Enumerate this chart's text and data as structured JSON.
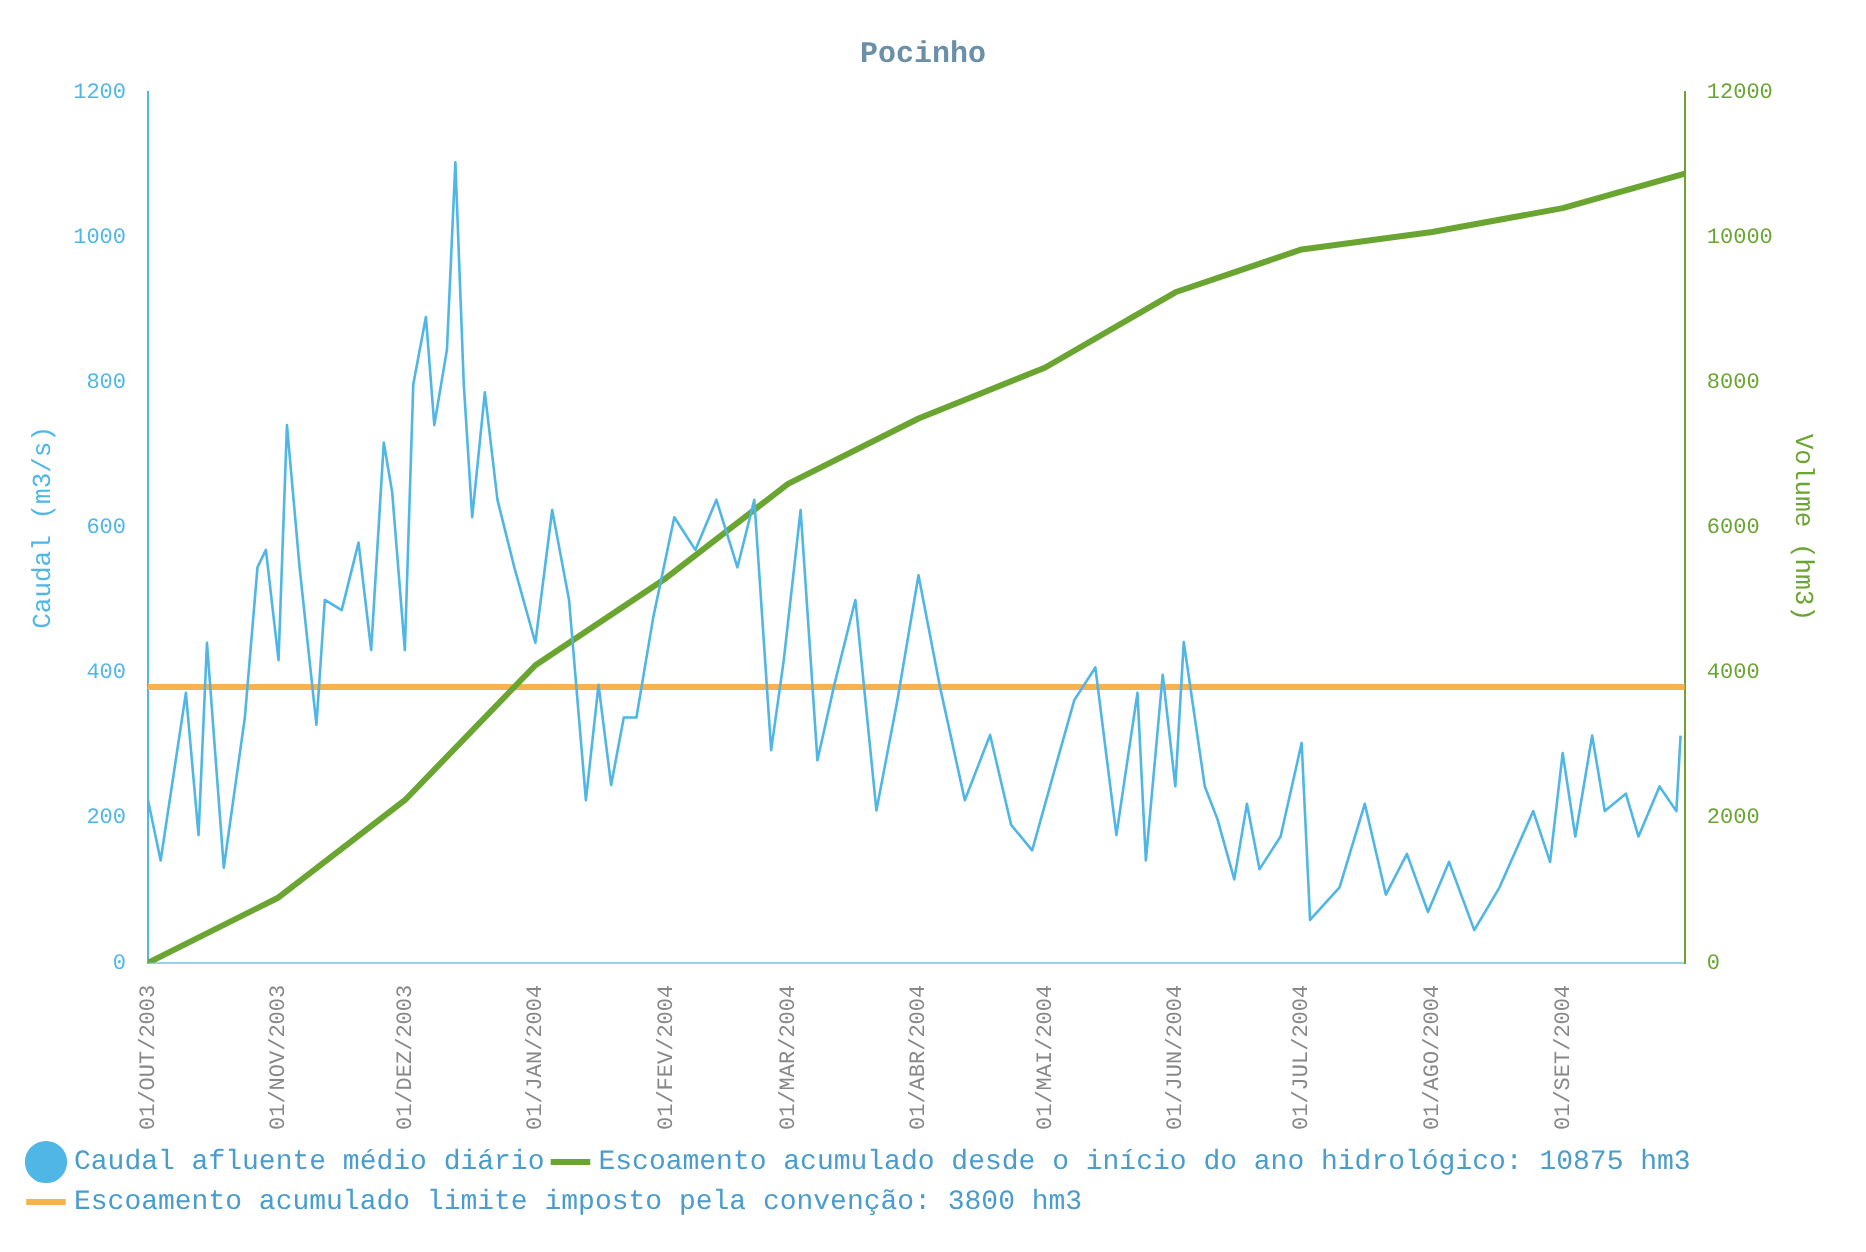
{
  "chart_data": {
    "type": "line",
    "title": "Pocinho",
    "ylabel": "Caudal (m3/s)",
    "y2label": "Volume (hm3)",
    "xlim": [
      "2003-10-01",
      "2004-09-30"
    ],
    "xticks": [
      {
        "value": "2003-10-01",
        "label": "01/OUT/2003"
      },
      {
        "value": "2003-11-01",
        "label": "01/NOV/2003"
      },
      {
        "value": "2003-12-01",
        "label": "01/DEZ/2003"
      },
      {
        "value": "2004-01-01",
        "label": "01/JAN/2004"
      },
      {
        "value": "2004-02-01",
        "label": "01/FEV/2004"
      },
      {
        "value": "2004-03-01",
        "label": "01/MAR/2004"
      },
      {
        "value": "2004-04-01",
        "label": "01/ABR/2004"
      },
      {
        "value": "2004-05-01",
        "label": "01/MAI/2004"
      },
      {
        "value": "2004-06-01",
        "label": "01/JUN/2004"
      },
      {
        "value": "2004-07-01",
        "label": "01/JUL/2004"
      },
      {
        "value": "2004-08-01",
        "label": "01/AGO/2004"
      },
      {
        "value": "2004-09-01",
        "label": "01/SET/2004"
      }
    ],
    "ylim": [
      0,
      1200
    ],
    "yticks": [
      0,
      200,
      400,
      600,
      800,
      1000,
      1200
    ],
    "y2lim": [
      0,
      12000
    ],
    "y2ticks": [
      0,
      2000,
      4000,
      6000,
      8000,
      10000,
      12000
    ],
    "grid": false,
    "legend": "bottom",
    "series": [
      {
        "name": "Caudal afluente médio diário",
        "color": "#4fb6e6",
        "x": [
          "2003-10-01",
          "2003-10-04",
          "2003-10-10",
          "2003-10-13",
          "2003-10-15",
          "2003-10-19",
          "2003-10-24",
          "2003-10-27",
          "2003-10-29",
          "2003-11-01",
          "2003-11-03",
          "2003-11-06",
          "2003-11-10",
          "2003-11-12",
          "2003-11-16",
          "2003-11-20",
          "2003-11-23",
          "2003-11-26",
          "2003-11-28",
          "2003-12-01",
          "2003-12-03",
          "2003-12-06",
          "2003-12-08",
          "2003-12-11",
          "2003-12-13",
          "2003-12-15",
          "2003-12-17",
          "2003-12-20",
          "2003-12-23",
          "2003-12-27",
          "2004-01-01",
          "2004-01-05",
          "2004-01-09",
          "2004-01-13",
          "2004-01-16",
          "2004-01-19",
          "2004-01-22",
          "2004-01-25",
          "2004-01-29",
          "2004-02-03",
          "2004-02-08",
          "2004-02-13",
          "2004-02-18",
          "2004-02-22",
          "2004-02-26",
          "2004-02-29",
          "2004-03-04",
          "2004-03-08",
          "2004-03-12",
          "2004-03-17",
          "2004-03-22",
          "2004-03-27",
          "2004-04-01",
          "2004-04-06",
          "2004-04-12",
          "2004-04-18",
          "2004-04-23",
          "2004-04-28",
          "2004-05-03",
          "2004-05-08",
          "2004-05-13",
          "2004-05-18",
          "2004-05-23",
          "2004-05-25",
          "2004-05-29",
          "2004-06-01",
          "2004-06-03",
          "2004-06-08",
          "2004-06-11",
          "2004-06-15",
          "2004-06-18",
          "2004-06-21",
          "2004-06-26",
          "2004-07-01",
          "2004-07-03",
          "2004-07-10",
          "2004-07-16",
          "2004-07-21",
          "2004-07-26",
          "2004-07-31",
          "2004-08-05",
          "2004-08-11",
          "2004-08-17",
          "2004-08-25",
          "2004-08-29",
          "2004-09-01",
          "2004-09-04",
          "2004-09-08",
          "2004-09-11",
          "2004-09-16",
          "2004-09-19",
          "2004-09-24",
          "2004-09-28",
          "2004-09-29"
        ],
        "values": [
          224,
          141,
          372,
          176,
          441,
          131,
          338,
          545,
          569,
          417,
          741,
          545,
          328,
          500,
          486,
          579,
          431,
          717,
          648,
          431,
          797,
          890,
          741,
          845,
          1103,
          797,
          614,
          786,
          638,
          545,
          441,
          624,
          500,
          224,
          383,
          245,
          338,
          338,
          476,
          614,
          569,
          638,
          545,
          638,
          293,
          417,
          624,
          279,
          383,
          500,
          210,
          362,
          534,
          383,
          224,
          314,
          190,
          155,
          259,
          362,
          407,
          176,
          372,
          141,
          397,
          243,
          442,
          243,
          198,
          115,
          219,
          129,
          174,
          303,
          59,
          104,
          219,
          94,
          150,
          70,
          139,
          45,
          104,
          209,
          139,
          289,
          174,
          313,
          209,
          233,
          174,
          243,
          209,
          313
        ]
      },
      {
        "name": "Escoamento acumulado desde o início do ano hidrológico: 10875 hm3",
        "color": "#6aa532",
        "axis": "y2",
        "x": [
          "2003-10-01",
          "2003-11-01",
          "2003-12-01",
          "2004-01-01",
          "2004-02-01",
          "2004-03-01",
          "2004-04-01",
          "2004-05-01",
          "2004-06-01",
          "2004-07-01",
          "2004-08-01",
          "2004-09-01",
          "2004-09-30"
        ],
        "values": [
          0,
          900,
          2240,
          4100,
          5300,
          6600,
          7500,
          8200,
          9240,
          9830,
          10070,
          10400,
          10875
        ]
      },
      {
        "name": "Escoamento acumulado limite imposto pela convenção: 3800 hm3",
        "color": "#f5b24f",
        "axis": "y2",
        "x": [
          "2003-10-01",
          "2004-09-30"
        ],
        "values": [
          3800,
          3800
        ]
      }
    ]
  }
}
